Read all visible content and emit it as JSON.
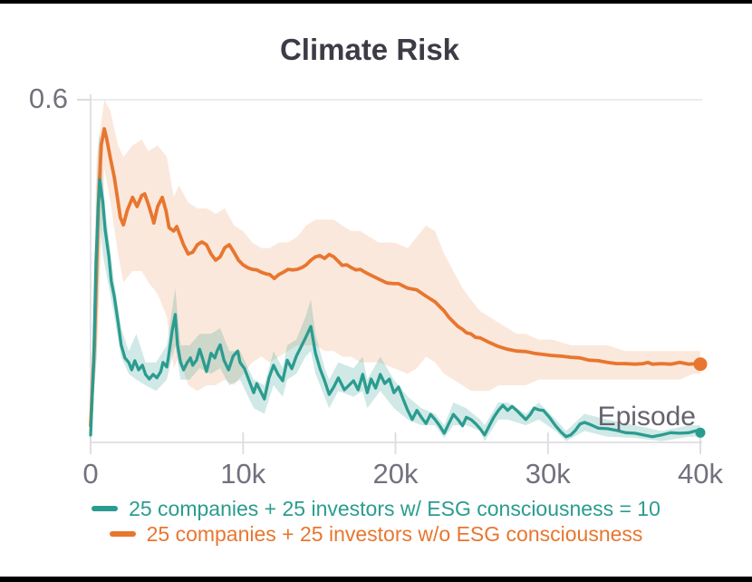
{
  "page": {
    "background": "#ffffff",
    "top_border_color": "#000000",
    "bottom_border_color": "#000000"
  },
  "chart_data": {
    "type": "line",
    "title": "Climate Risk",
    "xlabel": "Episode",
    "ylabel": "",
    "xlim": [
      0,
      40000
    ],
    "ylim": [
      0,
      0.6
    ],
    "grid": "single horizontal gridline at y = 0.6",
    "legend_position": "bottom",
    "xticks": [
      {
        "value": 0,
        "label": "0"
      },
      {
        "value": 10000,
        "label": "10k"
      },
      {
        "value": 20000,
        "label": "20k"
      },
      {
        "value": 30000,
        "label": "30k"
      },
      {
        "value": 40000,
        "label": "40k"
      }
    ],
    "yticks": [
      {
        "value": 0.6,
        "label": "0.6"
      }
    ],
    "text_colors": {
      "title": "#3d3b45",
      "tick_labels": "#73717e",
      "axis_title": "#64626d"
    },
    "axis_colors": {
      "spine": "#e3e1e6",
      "gridline": "#e7e6ea",
      "tick_mark": "#dcdbe0"
    },
    "series": [
      {
        "name": "25 companies + 25 investors w/ ESG consciousness = 10",
        "color": "#2a9c8f",
        "band_color": "rgba(42,156,143,0.22)",
        "end_marker_radius": 5.5,
        "x": [
          0,
          200,
          350,
          500,
          600,
          800,
          950,
          1200,
          1350,
          1550,
          1800,
          2000,
          2250,
          2500,
          2700,
          2900,
          3150,
          3400,
          3600,
          3850,
          4100,
          4350,
          4600,
          4750,
          5000,
          5100,
          5350,
          5550,
          5700,
          5900,
          6100,
          6350,
          6550,
          6700,
          6950,
          7150,
          7300,
          7600,
          7900,
          8150,
          8300,
          8500,
          8750,
          9050,
          9350,
          9650,
          9800,
          10100,
          10400,
          10700,
          10900,
          11100,
          11400,
          11700,
          12000,
          12300,
          12600,
          12900,
          13200,
          13500,
          13800,
          14100,
          14450,
          14750,
          15050,
          15350,
          15650,
          15950,
          16250,
          16650,
          16950,
          17250,
          17550,
          17850,
          18150,
          18400,
          18700,
          19000,
          19300,
          19600,
          19900,
          20200,
          20500,
          20800,
          21100,
          21400,
          21700,
          22000,
          22300,
          22600,
          22900,
          23200,
          23500,
          23800,
          24100,
          24400,
          24650,
          24950,
          25250,
          25550,
          25850,
          26150,
          26450,
          26750,
          27050,
          27350,
          27650,
          27950,
          28250,
          28550,
          28850,
          29100,
          29400,
          29700,
          30100,
          30500,
          30900,
          31200,
          31500,
          31800,
          32100,
          32400,
          32700,
          33300,
          33900,
          34500,
          35100,
          35700,
          36250,
          36850,
          37450,
          38050,
          38650,
          39250,
          39800,
          40000
        ],
        "y": [
          0.013,
          0.14,
          0.314,
          0.41,
          0.46,
          0.421,
          0.373,
          0.325,
          0.283,
          0.256,
          0.211,
          0.171,
          0.148,
          0.14,
          0.127,
          0.143,
          0.127,
          0.135,
          0.119,
          0.111,
          0.119,
          0.113,
          0.124,
          0.14,
          0.132,
          0.148,
          0.195,
          0.224,
          0.171,
          0.14,
          0.127,
          0.14,
          0.148,
          0.135,
          0.144,
          0.163,
          0.151,
          0.124,
          0.156,
          0.148,
          0.16,
          0.171,
          0.144,
          0.127,
          0.151,
          0.16,
          0.14,
          0.129,
          0.108,
          0.087,
          0.103,
          0.092,
          0.076,
          0.113,
          0.135,
          0.119,
          0.108,
          0.144,
          0.129,
          0.151,
          0.167,
          0.183,
          0.203,
          0.156,
          0.129,
          0.108,
          0.084,
          0.097,
          0.113,
          0.092,
          0.1,
          0.108,
          0.092,
          0.119,
          0.087,
          0.111,
          0.095,
          0.119,
          0.103,
          0.111,
          0.087,
          0.097,
          0.076,
          0.056,
          0.04,
          0.056,
          0.044,
          0.033,
          0.049,
          0.04,
          0.029,
          0.016,
          0.033,
          0.049,
          0.04,
          0.029,
          0.044,
          0.04,
          0.033,
          0.024,
          0.013,
          0.029,
          0.044,
          0.056,
          0.065,
          0.056,
          0.063,
          0.056,
          0.048,
          0.04,
          0.049,
          0.06,
          0.057,
          0.056,
          0.044,
          0.029,
          0.017,
          0.01,
          0.013,
          0.021,
          0.032,
          0.035,
          0.032,
          0.025,
          0.024,
          0.021,
          0.017,
          0.016,
          0.013,
          0.01,
          0.013,
          0.017,
          0.016,
          0.017,
          0.021,
          0.017
        ],
        "band": {
          "x": [
            0,
            400,
            550,
            650,
            800,
            1000,
            1500,
            2000,
            2500,
            3000,
            3600,
            4300,
            5000,
            5550,
            5900,
            6500,
            7150,
            7900,
            8500,
            9100,
            9800,
            10700,
            11400,
            12000,
            12600,
            12900,
            13500,
            14100,
            14450,
            14750,
            15350,
            15650,
            16250,
            17250,
            17850,
            18150,
            19000,
            19900,
            20800,
            21700,
            22600,
            23200,
            23800,
            24650,
            25550,
            25850,
            26750,
            27350,
            28550,
            29400,
            30500,
            31200,
            32400,
            33900,
            35700,
            37450,
            39250,
            40000
          ],
          "lower": [
            0.008,
            0.15,
            0.3,
            0.38,
            0.33,
            0.3,
            0.23,
            0.15,
            0.12,
            0.11,
            0.1,
            0.09,
            0.11,
            0.17,
            0.11,
            0.11,
            0.13,
            0.12,
            0.13,
            0.1,
            0.11,
            0.06,
            0.05,
            0.1,
            0.08,
            0.11,
            0.12,
            0.15,
            0.16,
            0.12,
            0.08,
            0.06,
            0.09,
            0.08,
            0.09,
            0.06,
            0.09,
            0.06,
            0.04,
            0.03,
            0.03,
            0.008,
            0.03,
            0.03,
            0.02,
            0.002,
            0.04,
            0.04,
            0.03,
            0.04,
            0.02,
            0.002,
            0.02,
            0.01,
            0.008,
            0.002,
            0.01,
            0.01
          ],
          "upper": [
            0.02,
            0.45,
            0.54,
            0.53,
            0.46,
            0.4,
            0.29,
            0.2,
            0.16,
            0.19,
            0.14,
            0.14,
            0.17,
            0.27,
            0.17,
            0.17,
            0.19,
            0.19,
            0.2,
            0.16,
            0.16,
            0.11,
            0.1,
            0.16,
            0.13,
            0.17,
            0.18,
            0.22,
            0.25,
            0.19,
            0.13,
            0.11,
            0.14,
            0.13,
            0.15,
            0.11,
            0.15,
            0.11,
            0.08,
            0.06,
            0.05,
            0.03,
            0.07,
            0.06,
            0.04,
            0.03,
            0.07,
            0.07,
            0.05,
            0.07,
            0.04,
            0.02,
            0.05,
            0.04,
            0.03,
            0.02,
            0.03,
            0.03
          ]
        }
      },
      {
        "name": "25 companies + 25 investors w/o ESG consciousness",
        "color": "#e8762f",
        "band_color": "rgba(232,118,47,0.17)",
        "end_marker_radius": 7.5,
        "x": [
          0,
          250,
          500,
          700,
          900,
          1050,
          1300,
          1550,
          1800,
          1950,
          2150,
          2400,
          2750,
          3050,
          3350,
          3550,
          3800,
          4050,
          4150,
          4400,
          4700,
          4950,
          5150,
          5450,
          5650,
          5800,
          6100,
          6400,
          6700,
          7000,
          7300,
          7600,
          7900,
          8200,
          8500,
          8800,
          9100,
          9400,
          9700,
          10000,
          10300,
          10600,
          10900,
          11200,
          11500,
          11750,
          12050,
          12350,
          12650,
          12950,
          13250,
          13550,
          13850,
          14150,
          14450,
          14750,
          15050,
          15350,
          15650,
          15950,
          16250,
          16500,
          16800,
          17100,
          17400,
          17700,
          18000,
          18300,
          18600,
          18900,
          19450,
          19900,
          20200,
          20800,
          21400,
          22000,
          22600,
          23200,
          23500,
          23800,
          24100,
          24400,
          24650,
          24950,
          25250,
          25550,
          25850,
          26150,
          26750,
          27350,
          27950,
          28550,
          29100,
          29700,
          30300,
          30900,
          31500,
          32100,
          32700,
          33300,
          33900,
          34500,
          35100,
          35700,
          36250,
          36550,
          36850,
          37450,
          38050,
          38650,
          39250,
          39800,
          40000
        ],
        "y": [
          0.029,
          0.171,
          0.41,
          0.521,
          0.549,
          0.532,
          0.497,
          0.465,
          0.421,
          0.394,
          0.381,
          0.406,
          0.429,
          0.413,
          0.432,
          0.435,
          0.416,
          0.394,
          0.384,
          0.413,
          0.429,
          0.405,
          0.376,
          0.37,
          0.378,
          0.367,
          0.346,
          0.33,
          0.333,
          0.346,
          0.351,
          0.346,
          0.33,
          0.319,
          0.325,
          0.341,
          0.346,
          0.333,
          0.319,
          0.311,
          0.306,
          0.303,
          0.302,
          0.298,
          0.295,
          0.294,
          0.287,
          0.294,
          0.298,
          0.303,
          0.302,
          0.303,
          0.306,
          0.311,
          0.319,
          0.325,
          0.327,
          0.322,
          0.329,
          0.325,
          0.317,
          0.31,
          0.311,
          0.306,
          0.302,
          0.303,
          0.298,
          0.294,
          0.29,
          0.286,
          0.279,
          0.278,
          0.278,
          0.27,
          0.267,
          0.256,
          0.246,
          0.23,
          0.219,
          0.211,
          0.203,
          0.198,
          0.192,
          0.19,
          0.184,
          0.183,
          0.179,
          0.175,
          0.168,
          0.163,
          0.16,
          0.159,
          0.156,
          0.154,
          0.152,
          0.151,
          0.149,
          0.148,
          0.144,
          0.143,
          0.14,
          0.138,
          0.138,
          0.137,
          0.138,
          0.14,
          0.137,
          0.138,
          0.137,
          0.14,
          0.137,
          0.138,
          0.137
        ],
        "band": {
          "x": [
            0,
            400,
            900,
            1300,
            1800,
            2150,
            2750,
            3350,
            3800,
            4400,
            5000,
            5450,
            5800,
            6400,
            7000,
            7600,
            8200,
            8800,
            9400,
            10000,
            10600,
            11200,
            11750,
            12350,
            12950,
            13550,
            14150,
            14750,
            15350,
            15950,
            16500,
            17100,
            17700,
            18300,
            18900,
            19900,
            20800,
            21400,
            22000,
            22600,
            23200,
            23800,
            24400,
            24950,
            25550,
            26150,
            26750,
            27350,
            27950,
            28550,
            29400,
            30300,
            31500,
            32700,
            33900,
            35100,
            36250,
            37450,
            38650,
            39500,
            40000
          ],
          "lower": [
            0.02,
            0.15,
            0.48,
            0.42,
            0.33,
            0.28,
            0.3,
            0.3,
            0.28,
            0.26,
            0.22,
            0.13,
            0.15,
            0.1,
            0.09,
            0.1,
            0.1,
            0.11,
            0.1,
            0.12,
            0.14,
            0.15,
            0.14,
            0.15,
            0.16,
            0.17,
            0.17,
            0.17,
            0.16,
            0.16,
            0.15,
            0.15,
            0.14,
            0.14,
            0.14,
            0.13,
            0.12,
            0.13,
            0.15,
            0.14,
            0.12,
            0.11,
            0.1,
            0.09,
            0.09,
            0.09,
            0.1,
            0.1,
            0.1,
            0.1,
            0.11,
            0.11,
            0.11,
            0.11,
            0.11,
            0.11,
            0.11,
            0.11,
            0.11,
            0.12,
            0.12
          ],
          "upper": [
            0.04,
            0.5,
            0.6,
            0.58,
            0.52,
            0.5,
            0.52,
            0.53,
            0.51,
            0.52,
            0.5,
            0.43,
            0.45,
            0.42,
            0.41,
            0.41,
            0.4,
            0.41,
            0.38,
            0.37,
            0.35,
            0.34,
            0.34,
            0.35,
            0.35,
            0.36,
            0.38,
            0.39,
            0.39,
            0.39,
            0.38,
            0.37,
            0.37,
            0.36,
            0.35,
            0.35,
            0.34,
            0.36,
            0.38,
            0.37,
            0.33,
            0.3,
            0.27,
            0.25,
            0.23,
            0.22,
            0.21,
            0.2,
            0.19,
            0.19,
            0.18,
            0.18,
            0.17,
            0.17,
            0.17,
            0.16,
            0.16,
            0.16,
            0.16,
            0.16,
            0.16
          ]
        }
      }
    ]
  }
}
